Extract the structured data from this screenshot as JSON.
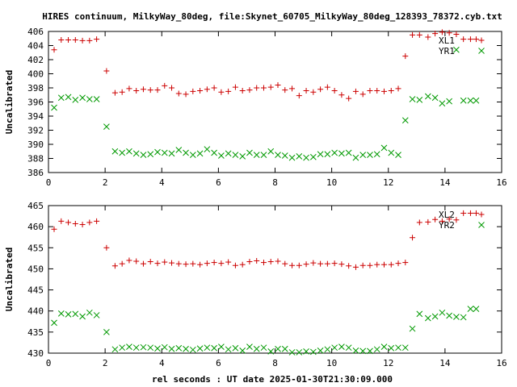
{
  "title": "HIRES continuum, MilkyWay_80deg, file:Skynet_60705_MilkyWay_80deg_128393_78372.cyb.txt",
  "xlabel": "rel seconds : UT date 2025-01-30T21:30:09.000",
  "chart_data": [
    {
      "type": "scatter",
      "ylabel": "Uncalibrated",
      "xlim": [
        0,
        16
      ],
      "ylim": [
        386,
        406
      ],
      "xticks": [
        0,
        2,
        4,
        6,
        8,
        10,
        12,
        14,
        16
      ],
      "yticks": [
        386,
        388,
        390,
        392,
        394,
        396,
        398,
        400,
        402,
        404,
        406
      ],
      "legend_position": "top-right",
      "series": [
        {
          "name": "XL1",
          "marker": "plus",
          "color": "#cc0000",
          "x": [
            0.2,
            0.45,
            0.7,
            0.95,
            1.2,
            1.45,
            1.7,
            2.05,
            2.35,
            2.6,
            2.85,
            3.1,
            3.35,
            3.6,
            3.85,
            4.1,
            4.35,
            4.6,
            4.85,
            5.1,
            5.35,
            5.6,
            5.85,
            6.1,
            6.35,
            6.6,
            6.85,
            7.1,
            7.35,
            7.6,
            7.85,
            8.1,
            8.35,
            8.6,
            8.85,
            9.1,
            9.35,
            9.6,
            9.85,
            10.1,
            10.35,
            10.6,
            10.85,
            11.1,
            11.35,
            11.6,
            11.85,
            12.1,
            12.35,
            12.6,
            12.85,
            13.1,
            13.4,
            13.65,
            13.9,
            14.15,
            14.4,
            14.65,
            14.9,
            15.1
          ],
          "y": [
            403.4,
            404.8,
            404.8,
            404.8,
            404.7,
            404.7,
            404.9,
            400.4,
            397.3,
            397.4,
            397.9,
            397.6,
            397.8,
            397.7,
            397.7,
            398.3,
            398.0,
            397.2,
            397.1,
            397.5,
            397.6,
            397.8,
            398.0,
            397.4,
            397.5,
            398.1,
            397.6,
            397.7,
            398.0,
            398.0,
            398.1,
            398.4,
            397.7,
            397.9,
            396.9,
            397.6,
            397.4,
            397.8,
            398.1,
            397.6,
            397.0,
            396.5,
            397.5,
            397.1,
            397.6,
            397.6,
            397.5,
            397.6,
            397.9,
            402.5,
            405.5,
            405.5,
            405.2,
            405.7,
            405.9,
            405.8,
            405.6,
            404.9,
            404.9,
            404.9
          ]
        },
        {
          "name": "YR1",
          "marker": "cross",
          "color": "#009900",
          "x": [
            0.2,
            0.45,
            0.7,
            0.95,
            1.2,
            1.45,
            1.7,
            2.05,
            2.35,
            2.6,
            2.85,
            3.1,
            3.35,
            3.6,
            3.85,
            4.1,
            4.35,
            4.6,
            4.85,
            5.1,
            5.35,
            5.6,
            5.85,
            6.1,
            6.35,
            6.6,
            6.85,
            7.1,
            7.35,
            7.6,
            7.85,
            8.1,
            8.35,
            8.6,
            8.85,
            9.1,
            9.35,
            9.6,
            9.85,
            10.1,
            10.35,
            10.6,
            10.85,
            11.1,
            11.35,
            11.6,
            11.85,
            12.1,
            12.35,
            12.6,
            12.85,
            13.1,
            13.4,
            13.65,
            13.9,
            14.15,
            14.4,
            14.65,
            14.9,
            15.1
          ],
          "y": [
            395.2,
            396.6,
            396.7,
            396.3,
            396.6,
            396.4,
            396.4,
            392.5,
            389.0,
            388.8,
            389.0,
            388.7,
            388.5,
            388.6,
            388.9,
            388.8,
            388.7,
            389.2,
            388.8,
            388.5,
            388.7,
            389.3,
            388.8,
            388.4,
            388.7,
            388.5,
            388.3,
            388.8,
            388.5,
            388.5,
            389.0,
            388.5,
            388.4,
            388.1,
            388.3,
            388.1,
            388.2,
            388.6,
            388.6,
            388.8,
            388.7,
            388.8,
            388.1,
            388.5,
            388.5,
            388.6,
            389.5,
            388.8,
            388.5,
            393.4,
            396.4,
            396.3,
            396.8,
            396.6,
            395.8,
            396.1,
            403.4,
            396.2,
            396.2,
            396.2
          ]
        }
      ]
    },
    {
      "type": "scatter",
      "ylabel": "Uncalibrated",
      "xlim": [
        0,
        16
      ],
      "ylim": [
        430,
        465
      ],
      "xticks": [
        0,
        2,
        4,
        6,
        8,
        10,
        12,
        14,
        16
      ],
      "yticks": [
        430,
        435,
        440,
        445,
        450,
        455,
        460,
        465
      ],
      "legend_position": "top-right",
      "series": [
        {
          "name": "XL2",
          "marker": "plus",
          "color": "#cc0000",
          "x": [
            0.2,
            0.45,
            0.7,
            0.95,
            1.2,
            1.45,
            1.7,
            2.05,
            2.35,
            2.6,
            2.85,
            3.1,
            3.35,
            3.6,
            3.85,
            4.1,
            4.35,
            4.6,
            4.85,
            5.1,
            5.35,
            5.6,
            5.85,
            6.1,
            6.35,
            6.6,
            6.85,
            7.1,
            7.35,
            7.6,
            7.85,
            8.1,
            8.35,
            8.6,
            8.85,
            9.1,
            9.35,
            9.6,
            9.85,
            10.1,
            10.35,
            10.6,
            10.85,
            11.1,
            11.35,
            11.6,
            11.85,
            12.1,
            12.35,
            12.6,
            12.85,
            13.1,
            13.4,
            13.65,
            13.9,
            14.15,
            14.4,
            14.65,
            14.9,
            15.1
          ],
          "y": [
            459.4,
            461.3,
            461.0,
            460.7,
            460.5,
            461.0,
            461.3,
            455.0,
            450.7,
            451.2,
            452.0,
            451.8,
            451.2,
            451.7,
            451.3,
            451.6,
            451.4,
            451.2,
            451.1,
            451.2,
            451.0,
            451.3,
            451.5,
            451.3,
            451.6,
            450.8,
            451.0,
            451.7,
            451.9,
            451.5,
            451.7,
            451.8,
            451.2,
            450.8,
            450.8,
            451.1,
            451.4,
            451.2,
            451.2,
            451.3,
            451.1,
            450.7,
            450.4,
            450.8,
            450.8,
            451.0,
            451.0,
            451.0,
            451.3,
            451.5,
            457.4,
            461.0,
            461.1,
            461.7,
            461.3,
            461.8,
            461.6,
            463.2,
            463.2,
            463.2
          ]
        },
        {
          "name": "YR2",
          "marker": "cross",
          "color": "#009900",
          "x": [
            0.2,
            0.45,
            0.7,
            0.95,
            1.2,
            1.45,
            1.7,
            2.05,
            2.35,
            2.6,
            2.85,
            3.1,
            3.35,
            3.6,
            3.85,
            4.1,
            4.35,
            4.6,
            4.85,
            5.1,
            5.35,
            5.6,
            5.85,
            6.1,
            6.35,
            6.6,
            6.85,
            7.1,
            7.35,
            7.6,
            7.85,
            8.1,
            8.35,
            8.6,
            8.85,
            9.1,
            9.35,
            9.6,
            9.85,
            10.1,
            10.35,
            10.6,
            10.85,
            11.1,
            11.35,
            11.6,
            11.85,
            12.1,
            12.35,
            12.6,
            12.85,
            13.1,
            13.4,
            13.65,
            13.9,
            14.15,
            14.4,
            14.65,
            14.9,
            15.1
          ],
          "y": [
            437.2,
            439.4,
            439.2,
            439.3,
            438.7,
            439.6,
            439.0,
            435.0,
            430.9,
            431.3,
            431.5,
            431.3,
            431.4,
            431.3,
            431.1,
            431.4,
            431.0,
            431.2,
            431.0,
            430.8,
            431.1,
            431.3,
            431.2,
            431.5,
            430.9,
            431.2,
            430.6,
            431.5,
            431.0,
            431.3,
            430.4,
            431.0,
            431.0,
            430.2,
            430.2,
            430.4,
            430.3,
            430.6,
            430.9,
            431.3,
            431.5,
            431.3,
            430.6,
            430.5,
            430.5,
            430.9,
            431.5,
            431.2,
            431.3,
            431.3,
            435.8,
            439.3,
            438.3,
            438.7,
            439.6,
            438.9,
            438.6,
            438.5,
            440.5,
            440.5
          ]
        }
      ]
    }
  ]
}
